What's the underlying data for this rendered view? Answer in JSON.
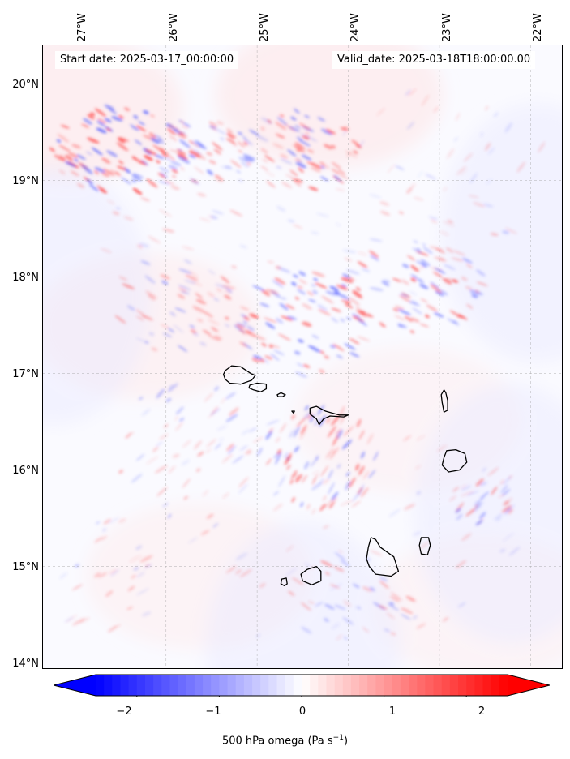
{
  "header": {
    "start_date": "Start date: 2025-03-17_00:00:00",
    "valid_date": "Valid_date: 2025-03-18T18:00:00.00"
  },
  "axes": {
    "lat_labels": [
      "20°N",
      "19°N",
      "18°N",
      "17°N",
      "16°N",
      "15°N",
      "14°N"
    ],
    "lon_labels": [
      "27°W",
      "26°W",
      "25°W",
      "24°W",
      "23°W",
      "22°W"
    ]
  },
  "map": {
    "lon_range": [
      -27.35,
      -21.8
    ],
    "lat_range": [
      13.95,
      20.4
    ],
    "gridlines": true,
    "field": "500 hPa omega",
    "islands": [
      "Santo Antão",
      "São Vicente",
      "Santa Luzia",
      "São Nicolau",
      "Sal",
      "Boa Vista",
      "Maio",
      "Santiago",
      "Fogo",
      "Brava"
    ]
  },
  "colorbar": {
    "title_text": "500 hPa omega (Pa s",
    "title_exp": "−1",
    "title_end": ")",
    "ticks": [
      "−2",
      "−1",
      "0",
      "1",
      "2"
    ],
    "tick_values": [
      -2,
      -1,
      0,
      1,
      2
    ],
    "range": [
      -2.5,
      2.5
    ],
    "extend": "both",
    "cmap": "bwr",
    "low_color": "#0000ff",
    "mid_color": "#ffffff",
    "high_color": "#ff0000"
  }
}
